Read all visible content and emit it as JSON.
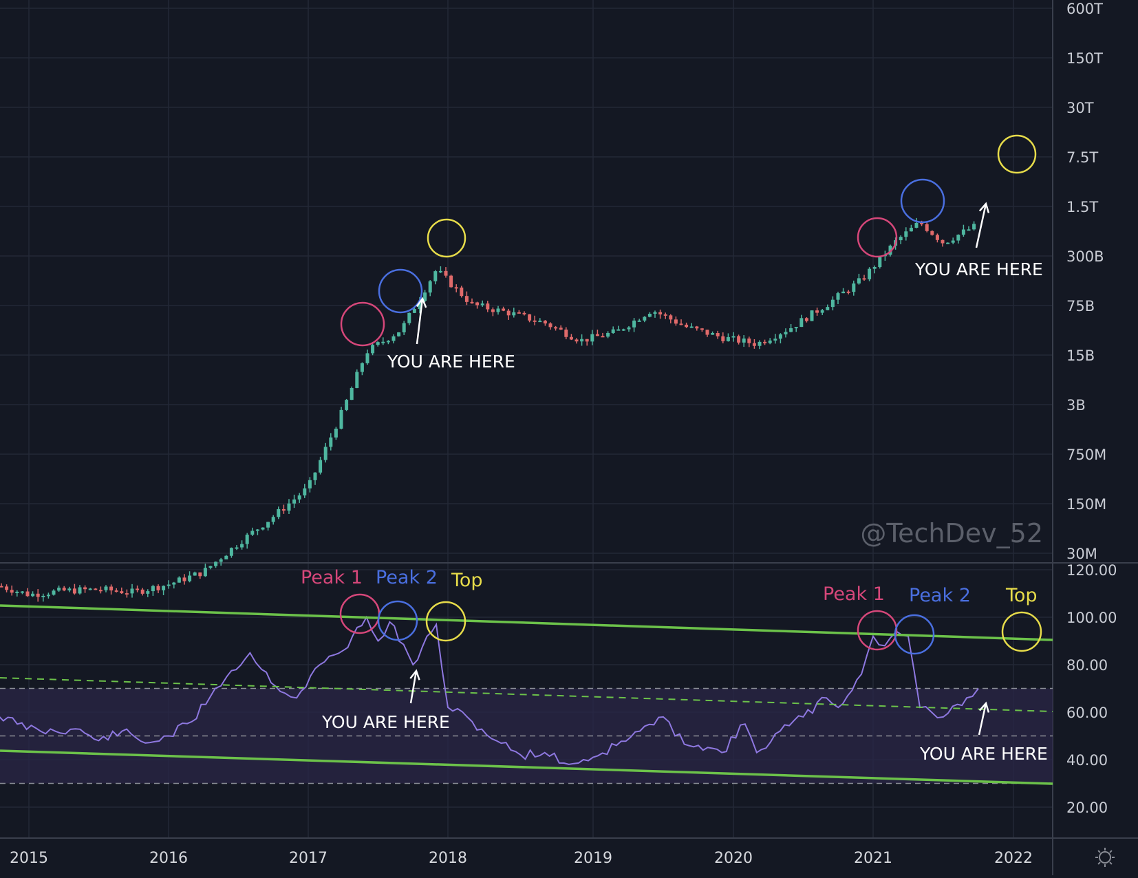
{
  "watermark": "@TechDev_52",
  "colors": {
    "background": "#141823",
    "grid": "#232836",
    "up": "#4fb7a0",
    "down": "#e06a6a",
    "oscillator": "#8e78e0",
    "channel": "#6cc24a",
    "band": "#2a2547",
    "peak1": "#d6477a",
    "peak2": "#4a6fe0",
    "top": "#e7dc4a",
    "arrow": "#ffffff"
  },
  "x_axis": {
    "labels": [
      "2015",
      "2016",
      "2017",
      "2018",
      "2019",
      "2020",
      "2021",
      "2022"
    ]
  },
  "price_axis": {
    "labels": [
      "600T",
      "150T",
      "30T",
      "7.5T",
      "1.5T",
      "300B",
      "75B",
      "15B",
      "3B",
      "750M",
      "150M",
      "30M"
    ]
  },
  "oscillator_axis": {
    "labels": [
      "120.00",
      "100.00",
      "80.00",
      "60.00",
      "40.00",
      "20.00"
    ]
  },
  "annotations": {
    "peak1": "Peak 1",
    "peak2": "Peak 2",
    "top": "Top",
    "you_are_here": "YOU ARE HERE"
  },
  "chart_data": [
    {
      "type": "candlestick",
      "scale": "log",
      "y_ticks": [
        "600T",
        "150T",
        "30T",
        "7.5T",
        "1.5T",
        "300B",
        "75B",
        "15B",
        "3B",
        "750M",
        "150M",
        "30M"
      ],
      "close_series": [
        [
          "2014-10",
          60000000
        ],
        [
          "2015-01",
          45000000
        ],
        [
          "2015-04",
          50000000
        ],
        [
          "2015-07",
          52000000
        ],
        [
          "2015-10",
          48000000
        ],
        [
          "2016-01",
          60000000
        ],
        [
          "2016-04",
          85000000
        ],
        [
          "2016-07",
          190000000
        ],
        [
          "2016-10",
          400000000
        ],
        [
          "2017-01",
          900000000
        ],
        [
          "2017-04",
          8000000000
        ],
        [
          "2017-06",
          40000000000
        ],
        [
          "2017-09",
          75000000000
        ],
        [
          "2017-12",
          400000000000
        ],
        [
          "2018-03",
          150000000000
        ],
        [
          "2018-06",
          120000000000
        ],
        [
          "2018-09",
          90000000000
        ],
        [
          "2018-12",
          55000000000
        ],
        [
          "2019-03",
          70000000000
        ],
        [
          "2019-06",
          130000000000
        ],
        [
          "2019-09",
          80000000000
        ],
        [
          "2019-12",
          60000000000
        ],
        [
          "2020-03",
          50000000000
        ],
        [
          "2020-06",
          80000000000
        ],
        [
          "2020-09",
          150000000000
        ],
        [
          "2020-12",
          300000000000
        ],
        [
          "2021-03",
          900000000000
        ],
        [
          "2021-05",
          1500000000000
        ],
        [
          "2021-07",
          850000000000
        ],
        [
          "2021-09",
          1200000000000
        ],
        [
          "2021-10",
          1400000000000
        ]
      ]
    },
    {
      "type": "line",
      "name": "",
      "ylim": [
        10,
        125
      ],
      "y_ticks": [
        120,
        100,
        80,
        60,
        40,
        20
      ],
      "series": [
        [
          "2014-10",
          60
        ],
        [
          "2014-12",
          55
        ],
        [
          "2015-02",
          52
        ],
        [
          "2015-05",
          53
        ],
        [
          "2015-07",
          48
        ],
        [
          "2015-09",
          52
        ],
        [
          "2015-11",
          47
        ],
        [
          "2016-01",
          50
        ],
        [
          "2016-03",
          56
        ],
        [
          "2016-05",
          70
        ],
        [
          "2016-06",
          75
        ],
        [
          "2016-08",
          85
        ],
        [
          "2016-09",
          78
        ],
        [
          "2016-11",
          68
        ],
        [
          "2016-12",
          66
        ],
        [
          "2017-02",
          80
        ],
        [
          "2017-04",
          86
        ],
        [
          "2017-06",
          100
        ],
        [
          "2017-07",
          90
        ],
        [
          "2017-08",
          98
        ],
        [
          "2017-10",
          80
        ],
        [
          "2017-12",
          97
        ],
        [
          "2018-01",
          62
        ],
        [
          "2018-03",
          56
        ],
        [
          "2018-05",
          48
        ],
        [
          "2018-07",
          42
        ],
        [
          "2018-09",
          43
        ],
        [
          "2018-11",
          38
        ],
        [
          "2019-01",
          41
        ],
        [
          "2019-03",
          46
        ],
        [
          "2019-05",
          52
        ],
        [
          "2019-07",
          58
        ],
        [
          "2019-08",
          50
        ],
        [
          "2019-10",
          46
        ],
        [
          "2019-12",
          43
        ],
        [
          "2020-02",
          55
        ],
        [
          "2020-03",
          43
        ],
        [
          "2020-05",
          52
        ],
        [
          "2020-07",
          58
        ],
        [
          "2020-09",
          66
        ],
        [
          "2020-10",
          62
        ],
        [
          "2020-12",
          76
        ],
        [
          "2021-01",
          92
        ],
        [
          "2021-02",
          88
        ],
        [
          "2021-03",
          94
        ],
        [
          "2021-04",
          92
        ],
        [
          "2021-05",
          62
        ],
        [
          "2021-06",
          60
        ],
        [
          "2021-07",
          58
        ],
        [
          "2021-09",
          66
        ],
        [
          "2021-10",
          70
        ]
      ]
    }
  ]
}
